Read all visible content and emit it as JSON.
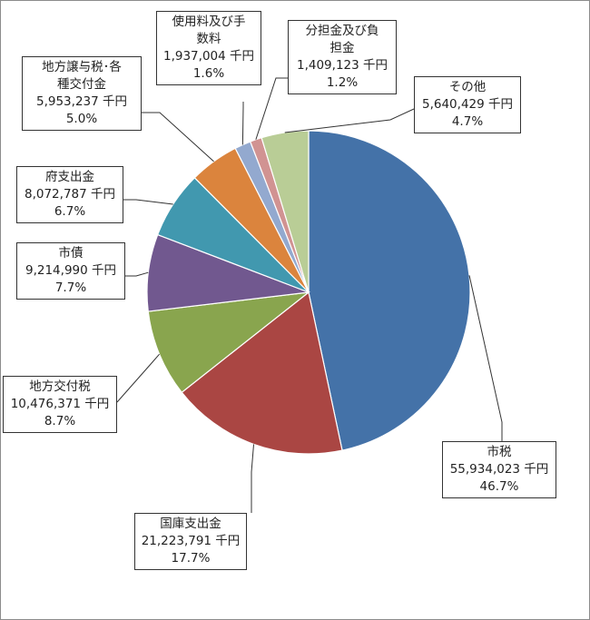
{
  "chart_data": {
    "type": "pie",
    "unit": "千円",
    "slices": [
      {
        "name": "市税",
        "value_label": "55,934,023",
        "value": 55934023,
        "percent": "46.7%",
        "color": "#4472a8"
      },
      {
        "name": "国庫支出金",
        "value_label": "21,223,791",
        "value": 21223791,
        "percent": "17.7%",
        "color": "#aa4643"
      },
      {
        "name": "地方交付税",
        "value_label": "10,476,371",
        "value": 10476371,
        "percent": "8.7%",
        "color": "#89a54e"
      },
      {
        "name": "市債",
        "value_label": "9,214,990",
        "value": 9214990,
        "percent": "7.7%",
        "color": "#71588f"
      },
      {
        "name": "府支出金",
        "value_label": "8,072,787",
        "value": 8072787,
        "percent": "6.7%",
        "color": "#4198af"
      },
      {
        "name": "地方譲与税･各種交付金",
        "value_label": "5,953,237",
        "value": 5953237,
        "percent": "5.0%",
        "color": "#db843d"
      },
      {
        "name": "使用料及び手数料",
        "value_label": "1,937,004",
        "value": 1937004,
        "percent": "1.6%",
        "color": "#93a9cf"
      },
      {
        "name": "分担金及び負担金",
        "value_label": "1,409,123",
        "value": 1409123,
        "percent": "1.2%",
        "color": "#d19392"
      },
      {
        "name": "その他",
        "value_label": "5,640,429",
        "value": 5640429,
        "percent": "4.7%",
        "color": "#b9cd96"
      }
    ],
    "labels": [
      {
        "line1": "市税",
        "line2": "55,934,023 千円",
        "line3": "46.7%"
      },
      {
        "line1": "国庫支出金",
        "line2": "21,223,791 千円",
        "line3": "17.7%"
      },
      {
        "line1": "地方交付税",
        "line2": "10,476,371 千円",
        "line3": "8.7%"
      },
      {
        "line1": "市債",
        "line2": "9,214,990 千円",
        "line3": "7.7%"
      },
      {
        "line1": "府支出金",
        "line2": "8,072,787 千円",
        "line3": "6.7%"
      },
      {
        "line1": "地方譲与税･各",
        "line2": "種交付金",
        "line3": "5,953,237 千円",
        "line4": "5.0%"
      },
      {
        "line1": "使用料及び手",
        "line2": "数料",
        "line3": "1,937,004 千円",
        "line4": "1.6%"
      },
      {
        "line1": "分担金及び負",
        "line2": "担金",
        "line3": "1,409,123 千円",
        "line4": "1.2%"
      },
      {
        "line1": "その他",
        "line2": "5,640,429 千円",
        "line3": "4.7%"
      }
    ]
  }
}
